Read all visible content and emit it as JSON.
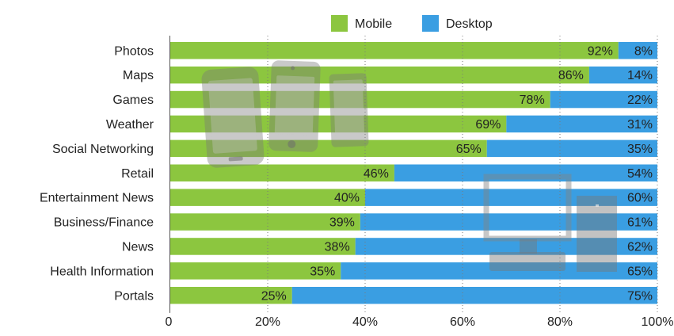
{
  "chart_data": {
    "type": "bar",
    "orientation": "horizontal",
    "stacked": true,
    "percent_stacked": true,
    "categories": [
      "Photos",
      "Maps",
      "Games",
      "Weather",
      "Social Networking",
      "Retail",
      "Entertainment News",
      "Business/Finance",
      "News",
      "Health Information",
      "Portals"
    ],
    "series": [
      {
        "name": "Mobile",
        "color": "#8cc63f",
        "values": [
          92,
          86,
          78,
          69,
          65,
          46,
          40,
          39,
          38,
          35,
          25
        ]
      },
      {
        "name": "Desktop",
        "color": "#3a9ee2",
        "values": [
          8,
          14,
          22,
          31,
          35,
          54,
          60,
          61,
          62,
          65,
          75
        ]
      }
    ],
    "value_labels": {
      "Mobile": [
        "92%",
        "86%",
        "78%",
        "69%",
        "65%",
        "46%",
        "40%",
        "39%",
        "38%",
        "35%",
        "25%"
      ],
      "Desktop": [
        "8%",
        "14%",
        "22%",
        "31%",
        "35%",
        "54%",
        "60%",
        "61%",
        "62%",
        "65%",
        "75%"
      ]
    },
    "xlim": [
      0,
      100
    ],
    "x_ticks": [
      "0",
      "20%",
      "40%",
      "60%",
      "80%",
      "100%"
    ],
    "grid": "vertical dotted",
    "legend": "top-center",
    "title": "",
    "xlabel": "",
    "ylabel": ""
  },
  "decorations": {
    "background_icons": [
      "smartphone-icon",
      "tablet-icon",
      "desktop-monitor-icon",
      "desktop-tower-icon"
    ]
  }
}
